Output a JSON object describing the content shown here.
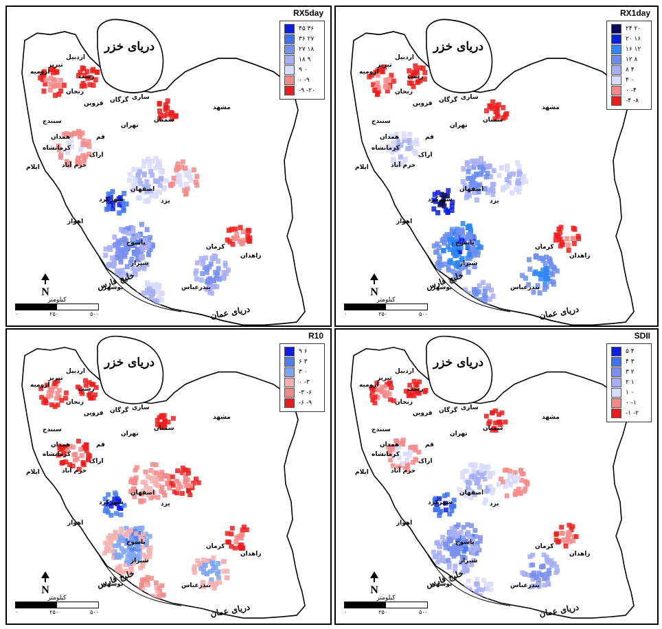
{
  "panels": [
    {
      "id": "rx5day",
      "title": "RX5day",
      "legend": [
        {
          "label": "۴۵ ۳۶",
          "color": "#0a1ee6"
        },
        {
          "label": "۳۶ ۲۷",
          "color": "#3f73ef"
        },
        {
          "label": "۲۷ ۱۸",
          "color": "#7a8fef"
        },
        {
          "label": "۱۸ ۹",
          "color": "#a7aef3"
        },
        {
          "label": "۹ ۰",
          "color": "#d9dbfa"
        },
        {
          "label": "۰ -۹",
          "color": "#f4898a"
        },
        {
          "label": "-۹ -۲۰",
          "color": "#ee1d1d"
        }
      ]
    },
    {
      "id": "rx1day",
      "title": "RX1day",
      "legend": [
        {
          "label": "۲۴ ۲۰",
          "color": "#0b0b5e"
        },
        {
          "label": "۲۰ ۱۶",
          "color": "#0a1ee6"
        },
        {
          "label": "۱۶ ۱۲",
          "color": "#2e86f2"
        },
        {
          "label": "۱۲ ۸",
          "color": "#6d8ef0"
        },
        {
          "label": "۸ ۴",
          "color": "#a7aef3"
        },
        {
          "label": "۴ ۰",
          "color": "#d9dbfa"
        },
        {
          "label": "۰ -۴",
          "color": "#f4898a"
        },
        {
          "label": "-۴ -۸",
          "color": "#ee1d1d"
        }
      ]
    },
    {
      "id": "r10",
      "title": "R10",
      "legend": [
        {
          "label": "۹ ۶",
          "color": "#0a1ee6"
        },
        {
          "label": "۶ ۳",
          "color": "#4a7ef0"
        },
        {
          "label": "۳ ۰",
          "color": "#7fa5f3"
        },
        {
          "label": "۰ -۳",
          "color": "#f4b0b0"
        },
        {
          "label": "-۳ -۶",
          "color": "#f4898a"
        },
        {
          "label": "-۶ -۹",
          "color": "#ee1d1d"
        }
      ]
    },
    {
      "id": "sdii",
      "title": "SDII",
      "legend": [
        {
          "label": "۵ ۴",
          "color": "#0a1ee6"
        },
        {
          "label": "۴ ۳",
          "color": "#3f73ef"
        },
        {
          "label": "۳ ۲",
          "color": "#7a8fef"
        },
        {
          "label": "۲ ۱",
          "color": "#a7aef3"
        },
        {
          "label": "۱ ۰",
          "color": "#d9dbfa"
        },
        {
          "label": "۰ -۱",
          "color": "#f4898a"
        },
        {
          "label": "-۱ -۲",
          "color": "#ee1d1d"
        }
      ]
    }
  ],
  "map": {
    "caspian_label": "دریای خزر",
    "persian_gulf_label": "خلیج فارس",
    "oman_sea_label": "دریای عمان",
    "scale_unit": "کیلومتر",
    "scale_ticks": [
      "۰",
      "۲۵۰",
      "۵۰۰"
    ],
    "north_label": "N",
    "cities": [
      {
        "name": "تبریز"
      },
      {
        "name": "ارومیه"
      },
      {
        "name": "اردبیل"
      },
      {
        "name": "رشت"
      },
      {
        "name": "زنجان"
      },
      {
        "name": "قزوین"
      },
      {
        "name": "گرگان"
      },
      {
        "name": "ساری"
      },
      {
        "name": "مشهد"
      },
      {
        "name": "سمنان"
      },
      {
        "name": "تهران"
      },
      {
        "name": "سنندج"
      },
      {
        "name": "همدان"
      },
      {
        "name": "کرمانشاه"
      },
      {
        "name": "قم"
      },
      {
        "name": "اراک"
      },
      {
        "name": "ایلام"
      },
      {
        "name": "خرم آباد"
      },
      {
        "name": "اصفهان"
      },
      {
        "name": "شهرکرد"
      },
      {
        "name": "یزد"
      },
      {
        "name": "اهواز"
      },
      {
        "name": "یاسوج"
      },
      {
        "name": "شیراز"
      },
      {
        "name": "کرمان"
      },
      {
        "name": "زاهدان"
      },
      {
        "name": "بوشهر"
      },
      {
        "name": "بندرعباس"
      }
    ]
  }
}
